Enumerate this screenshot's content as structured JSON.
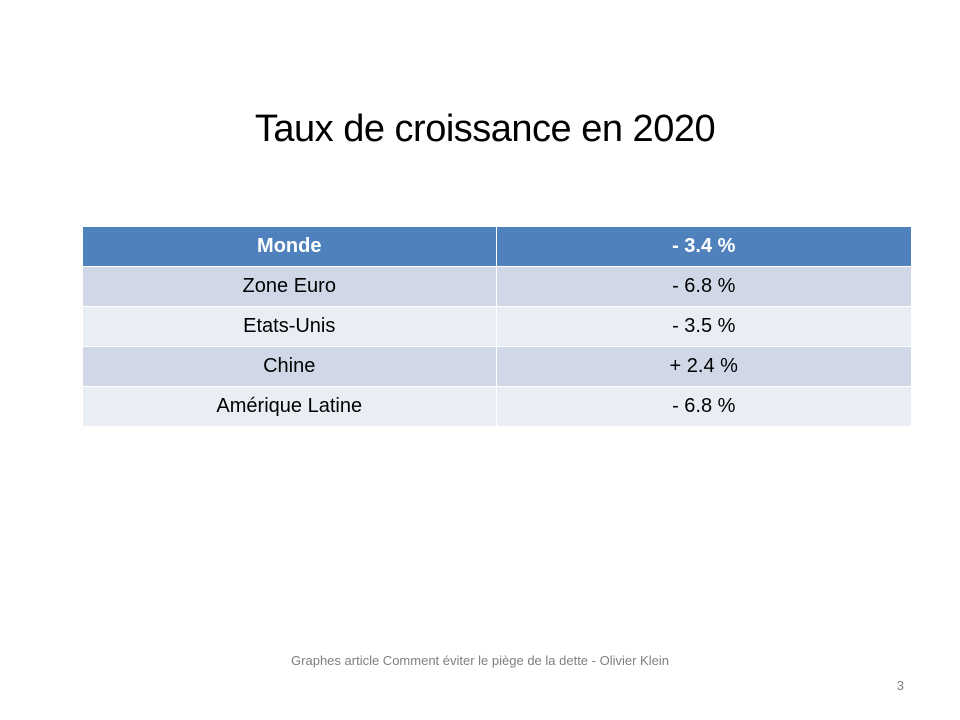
{
  "slide": {
    "title": "Taux de croissance en 2020",
    "footer": "Graphes article Comment  éviter le piège de la dette - Olivier Klein",
    "page_number": "3"
  },
  "table": {
    "header": [
      "Monde",
      "- 3.4 %"
    ],
    "rows": [
      [
        "Zone Euro",
        "- 6.8 %"
      ],
      [
        "Etats-Unis",
        "- 3.5 %"
      ],
      [
        "Chine",
        "+ 2.4 %"
      ],
      [
        "Amérique Latine",
        "- 6.8 %"
      ]
    ]
  },
  "colors": {
    "header_fill": "#4f81bd",
    "band_dark": "#d0d8e8",
    "band_light": "#e9edf4",
    "footer_text": "#7f7f7f"
  }
}
